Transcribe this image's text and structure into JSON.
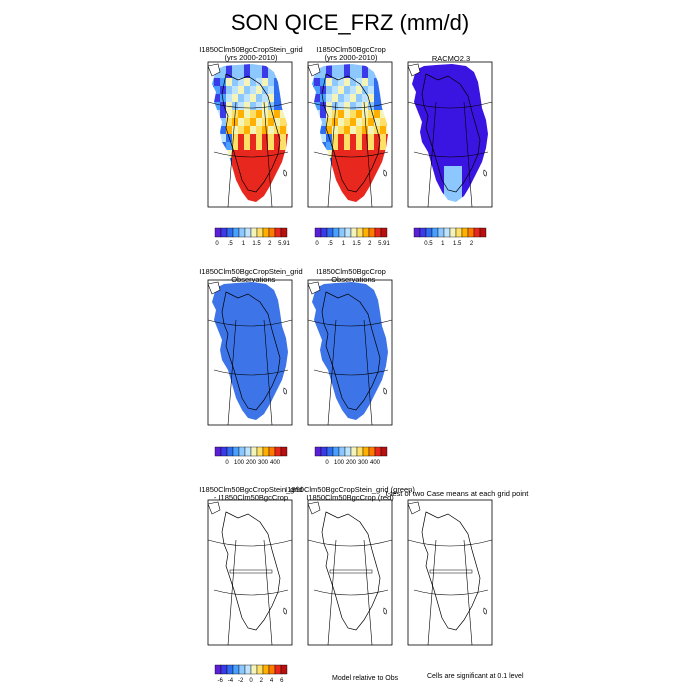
{
  "figure": {
    "title": "SON QICE_FRZ (mm/d)",
    "row1_panel1_title": "I1850Clm50BgcCropStein_grid",
    "row1_panel1_subtitle": "(yrs 2000-2010)",
    "row1_panel2_title": "I1850Clm50BgcCrop",
    "row1_panel2_subtitle": "(yrs 2000-2010)",
    "row1_panel3_title": "RACMO2.3",
    "row2_panel1_title": "I1850Clm50BgcCropStein_grid",
    "row2_panel1_subtitle": "- Observations",
    "row2_panel2_title": "I1850Clm50BgcCrop",
    "row2_panel2_subtitle": "- Observations",
    "row3_panel1_title": "I1850Clm50BgcCropStein_grid",
    "row3_panel1_subtitle": "- I1850Clm50BgcCrop",
    "row3_panel2_title": "I1850Clm50BgcCropStein_grid (green)",
    "row3_panel2_subtitle": "I1850Clm50BgcCrop (red)",
    "row3_panel3_title": "t-test of two Case means at each grid point",
    "note_model_relative": "Model relative to Obs",
    "note_significance": "Cells are significant at 0.1 level"
  },
  "colors": {
    "palette": [
      "#5a1fd6",
      "#3a3ae8",
      "#2f6df0",
      "#4aa0ff",
      "#8cc8ff",
      "#bde3ff",
      "#f4f4b8",
      "#ffe066",
      "#ffb000",
      "#ff7a00",
      "#e8281e",
      "#b80f0f"
    ],
    "field_blue": "#2f6df0",
    "diff_blue": "#3d74e8",
    "racmo_purple": "#3a14e0"
  },
  "chart_data": [
    {
      "type": "heatmap",
      "name": "row1-panel1",
      "title": "I1850Clm50BgcCropStein_grid",
      "subtitle": "(yrs 2000-2010)",
      "colorbar_ticks": [
        "0",
        ".5",
        "1",
        "1.5",
        "2",
        "5.91"
      ],
      "colorbar_range": [
        0,
        5.91
      ]
    },
    {
      "type": "heatmap",
      "name": "row1-panel2",
      "title": "I1850Clm50BgcCrop",
      "subtitle": "(yrs 2000-2010)",
      "colorbar_ticks": [
        "0",
        ".5",
        "1",
        "1.5",
        "2",
        "5.91"
      ],
      "colorbar_range": [
        0,
        5.91
      ]
    },
    {
      "type": "heatmap",
      "name": "row1-panel3",
      "title": "RACMO2.3",
      "colorbar_ticks": [
        "0.5",
        "1",
        "1.5",
        "2"
      ],
      "colorbar_range": [
        0,
        2.5
      ]
    },
    {
      "type": "heatmap",
      "name": "row2-panel1",
      "title": "I1850Clm50BgcCropStein_grid",
      "subtitle": "- Observations",
      "colorbar_ticks": [
        "0",
        "100",
        "200",
        "300",
        "400"
      ],
      "colorbar_range": [
        -100,
        500
      ]
    },
    {
      "type": "heatmap",
      "name": "row2-panel2",
      "title": "I1850Clm50BgcCrop",
      "subtitle": "- Observations",
      "colorbar_ticks": [
        "0",
        "100",
        "200",
        "300",
        "400"
      ],
      "colorbar_range": [
        -100,
        500
      ]
    },
    {
      "type": "heatmap",
      "name": "row3-panel1",
      "title": "I1850Clm50BgcCropStein_grid",
      "subtitle": "- I1850Clm50BgcCrop",
      "colorbar_ticks": [
        "-6",
        "-4",
        "-2",
        "0",
        "2",
        "4",
        "6"
      ],
      "colorbar_range": [
        -7,
        7
      ]
    }
  ]
}
